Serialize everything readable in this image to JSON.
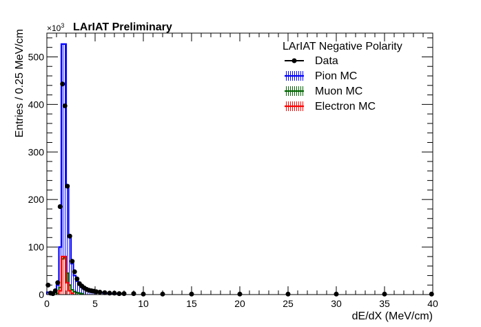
{
  "chart_data": {
    "type": "histogram",
    "title": "LArIAT Preliminary",
    "xlabel": "dE/dX (MeV/cm)",
    "ylabel": "Entries / 0.25 MeV/cm",
    "y_multiplier": "×10",
    "y_multiplier_exp": "3",
    "xlim": [
      0,
      40
    ],
    "ylim": [
      0,
      550
    ],
    "x_ticks": [
      "0",
      "5",
      "10",
      "15",
      "20",
      "25",
      "30",
      "35",
      "40"
    ],
    "y_ticks": [
      "0",
      "100",
      "200",
      "300",
      "400",
      "500"
    ],
    "bin_width": 0.25,
    "legend": {
      "header": "LArIAT Negative Polarity",
      "position": "top-right",
      "entries": [
        {
          "label": "Data",
          "color": "#000000",
          "style": "marker"
        },
        {
          "label": "Pion MC",
          "color": "#0000ff",
          "style": "hatched"
        },
        {
          "label": "Muon MC",
          "color": "#006600",
          "style": "hatched"
        },
        {
          "label": "Electron MC",
          "color": "#ff0000",
          "style": "hatched"
        }
      ]
    },
    "series": [
      {
        "name": "Pion MC",
        "color": "#0000ff",
        "x": [
          0.0,
          0.25,
          0.5,
          0.75,
          1.0,
          1.25,
          1.5,
          1.75,
          2.0,
          2.25,
          2.5,
          2.75,
          3.0,
          3.25,
          3.5,
          3.75,
          4.0,
          4.25,
          4.5,
          4.75,
          5.0,
          5.5,
          6.0,
          7.0
        ],
        "values": [
          5,
          2,
          3,
          8,
          20,
          100,
          527,
          527,
          230,
          120,
          65,
          40,
          28,
          20,
          16,
          12,
          10,
          8,
          7,
          6,
          5,
          4,
          3,
          2
        ]
      },
      {
        "name": "Muon MC",
        "color": "#006600",
        "x": [
          1.0,
          1.25,
          1.5,
          1.75,
          2.0,
          2.25,
          2.5,
          2.75,
          3.0,
          3.25,
          3.5
        ],
        "values": [
          3,
          15,
          75,
          78,
          45,
          20,
          10,
          6,
          4,
          3,
          2
        ]
      },
      {
        "name": "Electron MC",
        "color": "#ff0000",
        "x": [
          1.25,
          1.5,
          1.75,
          2.0,
          2.25,
          2.5
        ],
        "values": [
          8,
          80,
          80,
          25,
          8,
          3
        ]
      },
      {
        "name": "Data",
        "color": "#000000",
        "x": [
          0.125,
          0.375,
          0.625,
          0.875,
          1.125,
          1.375,
          1.625,
          1.875,
          2.125,
          2.375,
          2.625,
          2.875,
          3.125,
          3.375,
          3.625,
          3.875,
          4.125,
          4.375,
          4.625,
          4.875,
          5.125,
          5.5,
          6.0,
          6.5,
          7.0,
          7.5,
          8.0,
          9.0,
          10.0,
          12.0,
          15.0,
          20.0,
          25.0,
          30.0,
          35.0,
          39.875
        ],
        "values": [
          20,
          3,
          2,
          8,
          25,
          185,
          443,
          397,
          228,
          123,
          70,
          48,
          33,
          23,
          18,
          14,
          11,
          9,
          8,
          7,
          6,
          5,
          4,
          3,
          3,
          2,
          2,
          2,
          1,
          1,
          1,
          1,
          1,
          1,
          1,
          1
        ]
      }
    ]
  }
}
